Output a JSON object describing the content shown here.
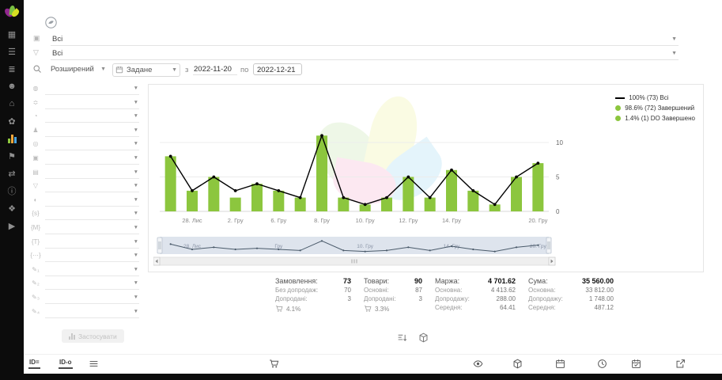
{
  "colors": {
    "accent_green": "#8cc63e",
    "line_black": "#000000",
    "navigator_fill": "#c3cede",
    "active_icon": "#f0a63c"
  },
  "sidebar": {
    "items": [
      {
        "name": "dashboard"
      },
      {
        "name": "orders"
      },
      {
        "name": "catalog"
      },
      {
        "name": "clients"
      },
      {
        "name": "warehouse"
      },
      {
        "name": "marketing"
      },
      {
        "name": "stats",
        "active": true
      },
      {
        "name": "announcements"
      },
      {
        "name": "integrations"
      },
      {
        "name": "info"
      },
      {
        "name": "tags"
      },
      {
        "name": "video"
      }
    ]
  },
  "topbar": {
    "filter1": {
      "value": "Всі",
      "icon": "layers-icon"
    },
    "filter2": {
      "value": "Всі",
      "icon": "funnel-icon"
    },
    "mode": {
      "value": "Розширений"
    },
    "period": {
      "value": "Задане"
    },
    "date_from_label": "з",
    "date_from": "2022-11-20",
    "date_to_label": "по",
    "date_to": "2022-12-21"
  },
  "filters": {
    "apply_label": "Застосувати",
    "rows": [
      {
        "icon": "sphere-icon"
      },
      {
        "icon": "scale-icon"
      },
      {
        "icon": "status-icon"
      },
      {
        "icon": "person-icon"
      },
      {
        "icon": "pin-icon"
      },
      {
        "icon": "package-icon"
      },
      {
        "icon": "money-icon"
      },
      {
        "icon": "funnel-icon"
      },
      {
        "icon": "globe-icon"
      },
      {
        "icon": "braces-s-icon"
      },
      {
        "icon": "braces-m-icon"
      },
      {
        "icon": "braces-t-icon"
      },
      {
        "icon": "braces-dots-icon"
      },
      {
        "icon": "pencil-1-icon"
      },
      {
        "icon": "pencil-2-icon"
      },
      {
        "icon": "pencil-3-icon"
      },
      {
        "icon": "pencil-4-icon"
      }
    ]
  },
  "chart_data": {
    "type": "bar+line",
    "points": 18,
    "series": [
      {
        "name": "Всі",
        "type": "line",
        "color": "#000000",
        "values": [
          8,
          3,
          5,
          3,
          4,
          3,
          2,
          11,
          2,
          1,
          2,
          5,
          2,
          6,
          3,
          1,
          5,
          7
        ]
      },
      {
        "name": "Завершений",
        "type": "bar",
        "color": "#8cc63e",
        "values": [
          8,
          3,
          5,
          2,
          4,
          3,
          2,
          11,
          2,
          1,
          2,
          5,
          2,
          6,
          3,
          1,
          5,
          7
        ]
      }
    ],
    "xticks": [
      {
        "i": 1,
        "label": "28. Лис"
      },
      {
        "i": 3,
        "label": "2. Гру"
      },
      {
        "i": 5,
        "label": "6. Гру"
      },
      {
        "i": 7,
        "label": "8. Гру"
      },
      {
        "i": 9,
        "label": "10. Гру"
      },
      {
        "i": 11,
        "label": "12. Гру"
      },
      {
        "i": 13,
        "label": "14. Гру"
      },
      {
        "i": 17,
        "label": "20. Гру"
      }
    ],
    "nav_labels": [
      {
        "i": 1,
        "label": "28. Лис"
      },
      {
        "i": 5,
        "label": "Гру"
      },
      {
        "i": 9,
        "label": "10. Гру"
      },
      {
        "i": 13,
        "label": "14. Гру"
      },
      {
        "i": 17,
        "label": "20. Гру"
      }
    ],
    "ylim": [
      0,
      12
    ],
    "yticks": [
      0,
      5,
      10
    ],
    "grid": true,
    "legend_position": "top-right",
    "legend": [
      {
        "label": "100%  (73) Всі",
        "marker": "line",
        "color": "#000000"
      },
      {
        "label": "98.6% (72) Завершений",
        "marker": "dot",
        "color": "#8cc63e"
      },
      {
        "label": "1.4%  (1) DO Завершено",
        "marker": "dot",
        "color": "#8cc63e"
      }
    ]
  },
  "stats": {
    "columns": [
      {
        "title": "Замовлення:",
        "value": "73",
        "rows": [
          [
            "Без допродаж:",
            "70"
          ],
          [
            "Допродані:",
            "3"
          ]
        ],
        "percent": "4.1%"
      },
      {
        "title": "Товари:",
        "value": "90",
        "rows": [
          [
            "Основні:",
            "87"
          ],
          [
            "Допродані:",
            "3"
          ]
        ],
        "percent": "3.3%"
      },
      {
        "title": "Маржа:",
        "value": "4 701.62",
        "rows": [
          [
            "Основна:",
            "4 413.62"
          ],
          [
            "Допродажу:",
            "288.00"
          ],
          [
            "Середня:",
            "64.41"
          ]
        ]
      },
      {
        "title": "Сума:",
        "value": "35 560.00",
        "rows": [
          [
            "Основна:",
            "33 812.00"
          ],
          [
            "Допродажу:",
            "1 748.00"
          ],
          [
            "Середня:",
            "487.12"
          ]
        ]
      }
    ]
  },
  "footer": {
    "items": [
      {
        "name": "id-equals-tab",
        "label": "ID="
      },
      {
        "name": "id-o-tab",
        "label": "ID-o"
      },
      {
        "name": "list-icon",
        "icon": "list"
      },
      {
        "name": "cart-icon",
        "icon": "cart"
      },
      {
        "name": "eye-icon",
        "icon": "eye"
      },
      {
        "name": "package-icon",
        "icon": "package"
      },
      {
        "name": "calendar-icon",
        "icon": "calendar"
      },
      {
        "name": "clock-icon",
        "icon": "clock"
      },
      {
        "name": "calendar-check-icon",
        "icon": "calendarcheck"
      },
      {
        "name": "external-link-icon",
        "icon": "external"
      }
    ]
  }
}
